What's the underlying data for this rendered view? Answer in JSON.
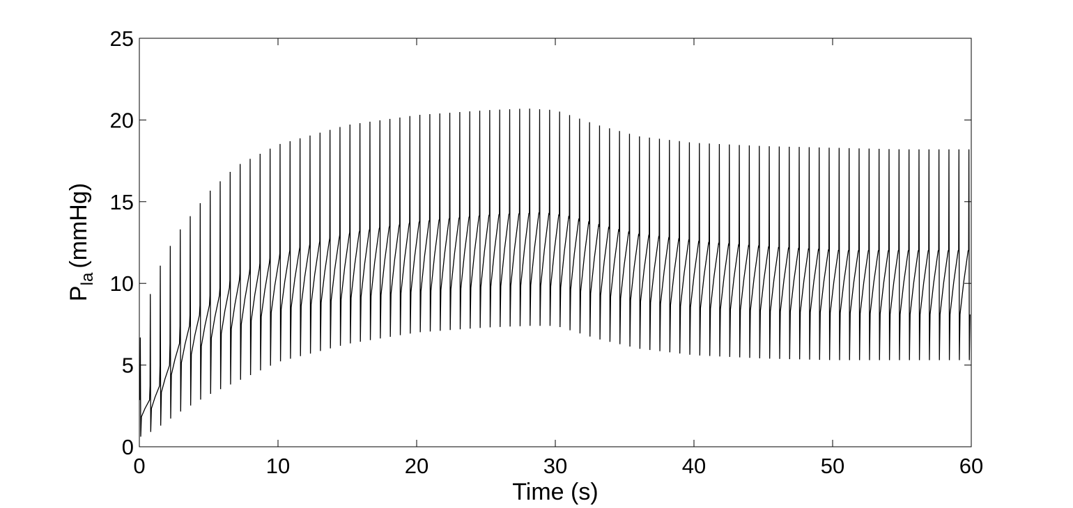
{
  "chart_data": {
    "type": "line",
    "title": "",
    "xlabel": "Time (s)",
    "ylabel": {
      "main": "P",
      "sub": "la",
      "unit": "(mmHg)"
    },
    "xlim": [
      0,
      60
    ],
    "ylim": [
      0,
      25
    ],
    "x_ticks": [
      0,
      10,
      20,
      30,
      40,
      50,
      60
    ],
    "x_tick_labels": [
      "0",
      "10",
      "20",
      "30",
      "40",
      "50",
      "60"
    ],
    "y_ticks": [
      0,
      5,
      10,
      15,
      20,
      25
    ],
    "y_tick_labels": [
      "0",
      "5",
      "10",
      "15",
      "20",
      "25"
    ],
    "grid": false,
    "legend": "none",
    "line_color": "#000000",
    "beat_period_s": 0.72,
    "series": [
      {
        "envelope": {
          "t": [
            0,
            1,
            2,
            3,
            5,
            7,
            10,
            15,
            20,
            25,
            28,
            30,
            33,
            36,
            40,
            45,
            50,
            55,
            60
          ],
          "peak": [
            6.5,
            10.2,
            12.0,
            13.4,
            15.6,
            17.2,
            18.5,
            19.7,
            20.3,
            20.6,
            20.7,
            20.6,
            19.7,
            19.0,
            18.6,
            18.4,
            18.3,
            18.2,
            18.2
          ],
          "trough": [
            0.6,
            1.0,
            1.6,
            2.2,
            3.2,
            4.0,
            5.2,
            6.3,
            7.0,
            7.3,
            7.4,
            7.4,
            6.6,
            6.0,
            5.6,
            5.4,
            5.3,
            5.3,
            5.3
          ],
          "mid_high": [
            2.8,
            4.0,
            6.0,
            7.5,
            9.2,
            10.5,
            11.8,
            13.1,
            13.8,
            14.2,
            14.3,
            14.2,
            13.5,
            12.9,
            12.5,
            12.2,
            12.0,
            12.0,
            12.0
          ],
          "mid_low": [
            1.8,
            2.5,
            4.2,
            5.2,
            6.6,
            7.4,
            8.4,
            9.1,
            9.5,
            9.8,
            9.9,
            9.8,
            9.3,
            8.9,
            8.5,
            8.3,
            8.2,
            8.1,
            8.1
          ]
        }
      }
    ]
  }
}
